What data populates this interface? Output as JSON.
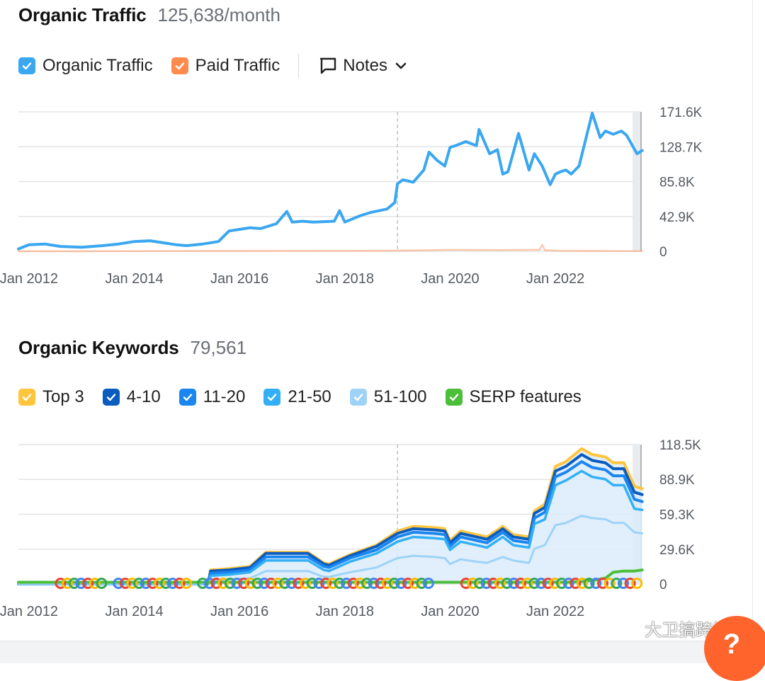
{
  "colors": {
    "organic": "#3aa7f0",
    "paid": "#ff8a4c",
    "top3": "#ffc53d",
    "k4_10": "#0a5cbf",
    "k11_20": "#1a86f0",
    "k21_50": "#33b0f5",
    "k51_100": "#9ed3f7",
    "serp": "#4cbf3a",
    "grid": "#e3e3e3"
  },
  "traffic": {
    "title": "Organic Traffic",
    "value": "125,638/month",
    "legend": [
      {
        "label": "Organic Traffic",
        "color_key": "organic"
      },
      {
        "label": "Paid Traffic",
        "color_key": "paid"
      }
    ],
    "notes_label": "Notes"
  },
  "keywords": {
    "title": "Organic Keywords",
    "value": "79,561",
    "legend": [
      {
        "label": "Top 3",
        "color_key": "top3"
      },
      {
        "label": "4-10",
        "color_key": "k4_10"
      },
      {
        "label": "11-20",
        "color_key": "k11_20"
      },
      {
        "label": "21-50",
        "color_key": "k21_50"
      },
      {
        "label": "51-100",
        "color_key": "k51_100"
      },
      {
        "label": "SERP features",
        "color_key": "serp"
      }
    ]
  },
  "chart_data": [
    {
      "type": "line",
      "title": "Organic Traffic",
      "x_ticks": [
        "Jan 2012",
        "Jan 2014",
        "Jan 2016",
        "Jan 2018",
        "Jan 2020",
        "Jan 2022"
      ],
      "x_range": [
        2011.8,
        2023.6
      ],
      "y_ticks": [
        "171.6K",
        "128.7K",
        "85.8K",
        "42.9K",
        "0"
      ],
      "y_tick_values": [
        171600,
        128700,
        85800,
        42900,
        0
      ],
      "ylim": [
        0,
        171600
      ],
      "marker_x": 2019.0,
      "series": [
        {
          "name": "Organic Traffic",
          "color_key": "organic",
          "x": [
            2011.8,
            2012.0,
            2012.3,
            2012.6,
            2013.0,
            2013.4,
            2013.7,
            2014.0,
            2014.3,
            2014.6,
            2014.8,
            2015.0,
            2015.3,
            2015.6,
            2015.8,
            2016.0,
            2016.2,
            2016.4,
            2016.7,
            2016.9,
            2017.0,
            2017.2,
            2017.4,
            2017.8,
            2017.9,
            2018.0,
            2018.3,
            2018.5,
            2018.8,
            2018.95,
            2019.0,
            2019.1,
            2019.3,
            2019.5,
            2019.6,
            2019.75,
            2019.9,
            2020.0,
            2020.1,
            2020.3,
            2020.5,
            2020.55,
            2020.75,
            2020.9,
            2021.0,
            2021.1,
            2021.3,
            2021.5,
            2021.6,
            2021.75,
            2021.9,
            2022.0,
            2022.1,
            2022.2,
            2022.3,
            2022.45,
            2022.7,
            2022.85,
            2022.95,
            2023.1,
            2023.25,
            2023.35,
            2023.55,
            2023.65
          ],
          "values": [
            3000,
            8000,
            9000,
            6000,
            5000,
            7000,
            9000,
            12000,
            13000,
            10000,
            8000,
            7000,
            9000,
            12000,
            25000,
            27000,
            29000,
            28000,
            34000,
            49000,
            36000,
            37000,
            36000,
            37000,
            50000,
            36000,
            44000,
            48000,
            52000,
            60000,
            83000,
            88000,
            85000,
            100000,
            122000,
            112000,
            105000,
            128000,
            130000,
            135000,
            130000,
            150000,
            120000,
            125000,
            95000,
            98000,
            145000,
            100000,
            120000,
            105000,
            82000,
            95000,
            98000,
            100000,
            95000,
            105000,
            170000,
            140000,
            148000,
            144000,
            148000,
            143000,
            120000,
            124000
          ]
        },
        {
          "name": "Paid Traffic",
          "color_key": "paid",
          "x": [
            2011.8,
            2019.0,
            2020.0,
            2021.0,
            2021.7,
            2021.75,
            2021.8,
            2022.0,
            2023.65
          ],
          "values": [
            0,
            800,
            1800,
            1500,
            2000,
            8000,
            1500,
            600,
            200
          ]
        }
      ]
    },
    {
      "type": "area",
      "title": "Organic Keywords",
      "x_ticks": [
        "Jan 2012",
        "Jan 2014",
        "Jan 2016",
        "Jan 2018",
        "Jan 2020",
        "Jan 2022"
      ],
      "x_range": [
        2011.8,
        2023.6
      ],
      "y_ticks": [
        "118.5K",
        "88.9K",
        "59.3K",
        "29.6K",
        "0"
      ],
      "y_tick_values": [
        118500,
        88900,
        59300,
        29600,
        0
      ],
      "ylim": [
        0,
        118500
      ],
      "marker_x": 2019.0,
      "x": [
        2011.8,
        2015.4,
        2015.45,
        2015.8,
        2016.2,
        2016.5,
        2016.7,
        2017.0,
        2017.3,
        2017.6,
        2017.7,
        2018.1,
        2018.6,
        2019.0,
        2019.3,
        2019.7,
        2019.9,
        2020.0,
        2020.2,
        2020.5,
        2020.7,
        2021.0,
        2021.2,
        2021.5,
        2021.6,
        2021.8,
        2022.0,
        2022.2,
        2022.5,
        2022.7,
        2022.95,
        2023.1,
        2023.3,
        2023.5,
        2023.65
      ],
      "series": [
        {
          "name": "Top 3",
          "color_key": "top3",
          "values": [
            0,
            0,
            12000,
            13000,
            15000,
            27000,
            27000,
            27000,
            27000,
            18000,
            17000,
            25000,
            33000,
            45000,
            49000,
            48000,
            47000,
            37000,
            45000,
            42000,
            40000,
            49000,
            42000,
            40000,
            62000,
            68000,
            100000,
            104000,
            115000,
            110000,
            108000,
            103000,
            103000,
            83000,
            81000
          ]
        },
        {
          "name": "4-10",
          "color_key": "k4_10",
          "values": [
            0,
            0,
            11000,
            12000,
            14000,
            26000,
            26000,
            26000,
            26000,
            17000,
            16000,
            24000,
            32000,
            43000,
            47000,
            46000,
            45000,
            35000,
            43000,
            40000,
            38000,
            47000,
            40000,
            38000,
            60000,
            65000,
            96000,
            100000,
            110000,
            105000,
            103000,
            98000,
            98000,
            78000,
            76000
          ]
        },
        {
          "name": "11-20",
          "color_key": "k11_20",
          "values": [
            0,
            0,
            9000,
            10000,
            12000,
            23000,
            23000,
            23000,
            23000,
            15000,
            14000,
            22000,
            29000,
            40000,
            44000,
            43000,
            42000,
            32000,
            40000,
            37000,
            35000,
            44000,
            37000,
            35000,
            56000,
            61000,
            91000,
            95000,
            104000,
            99000,
            97000,
            92000,
            92000,
            72000,
            70000
          ]
        },
        {
          "name": "21-50",
          "color_key": "k21_50",
          "values": [
            0,
            0,
            7000,
            8000,
            10000,
            20000,
            20000,
            20000,
            20000,
            12000,
            11000,
            19000,
            26000,
            36000,
            40000,
            39000,
            38000,
            29000,
            36000,
            33000,
            31000,
            40000,
            33000,
            31000,
            51000,
            55000,
            84000,
            88000,
            96000,
            91000,
            89000,
            84000,
            84000,
            64000,
            63000
          ]
        },
        {
          "name": "51-100",
          "color_key": "k51_100",
          "values": [
            0,
            0,
            3000,
            4000,
            5000,
            11000,
            11000,
            11000,
            11000,
            6000,
            6000,
            10000,
            14000,
            22000,
            24000,
            23000,
            22000,
            17000,
            21000,
            19000,
            18000,
            23000,
            20000,
            18000,
            30000,
            33000,
            50000,
            52000,
            58000,
            56000,
            55000,
            52000,
            52000,
            44000,
            43000
          ]
        },
        {
          "name": "SERP features",
          "color_key": "serp",
          "values": [
            1500,
            1500,
            1500,
            1500,
            1500,
            1500,
            1500,
            1500,
            1500,
            1500,
            1500,
            1500,
            1500,
            1500,
            1500,
            1500,
            1500,
            1500,
            1500,
            1500,
            1500,
            1500,
            1500,
            1500,
            1500,
            1500,
            1500,
            1500,
            2000,
            3000,
            5000,
            10000,
            11000,
            11000,
            12000
          ]
        }
      ]
    }
  ],
  "watermark": {
    "text": "大卫搞跨境"
  },
  "help": {
    "label": "?"
  }
}
